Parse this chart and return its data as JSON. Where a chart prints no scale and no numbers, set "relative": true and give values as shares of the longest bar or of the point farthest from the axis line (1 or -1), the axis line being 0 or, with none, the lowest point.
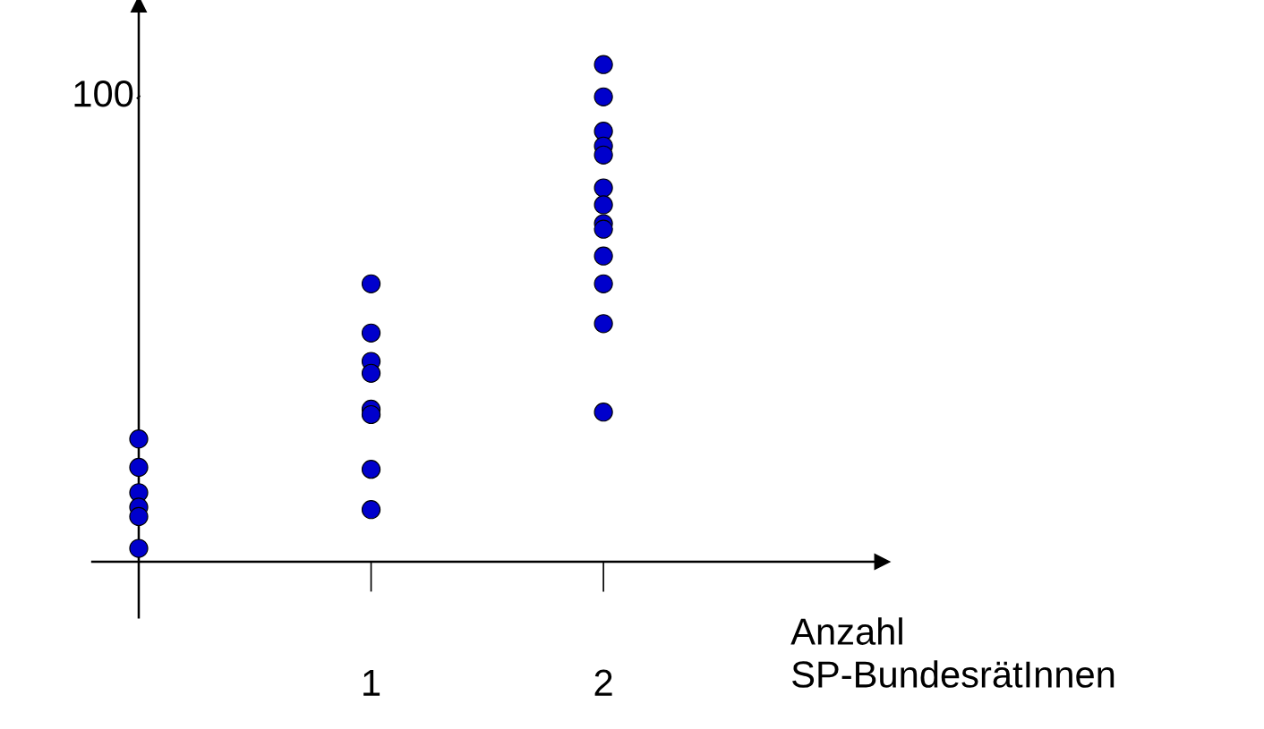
{
  "chart_data": {
    "type": "scatter",
    "xlabel": "Anzahl\nSP-BundesrätInnen",
    "relative": true,
    "xlim": [
      -0.2,
      3.2
    ],
    "xticks": [
      1,
      2
    ],
    "grid": false,
    "marker": "circle",
    "annotations": [
      "100"
    ],
    "series": [
      {
        "color": "#0000cc",
        "x": [
          0,
          0,
          0,
          0,
          0,
          0,
          1,
          1,
          1,
          1,
          1,
          1,
          1,
          1,
          2,
          2,
          2,
          2,
          2,
          2,
          2,
          2,
          2,
          2,
          2,
          2,
          2
        ],
        "values": [
          0.247,
          0.19,
          0.139,
          0.11,
          0.091,
          0.027,
          0.559,
          0.46,
          0.403,
          0.379,
          0.307,
          0.296,
          0.186,
          0.105,
          1,
          0.935,
          0.866,
          0.836,
          0.818,
          0.752,
          0.718,
          0.68,
          0.669,
          0.615,
          0.559,
          0.479,
          0.301
        ]
      }
    ]
  }
}
